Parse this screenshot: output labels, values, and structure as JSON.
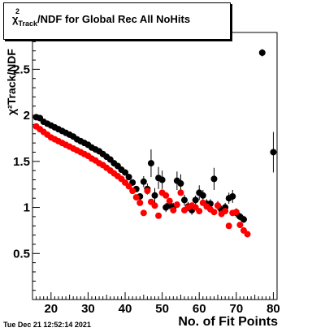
{
  "chart_data": {
    "type": "scatter",
    "title": "/NDF for Global Rec All NoHits",
    "title_symbol": "χ",
    "title_sup": "2",
    "title_sub": "Track",
    "xlabel": "No. of Fit Points",
    "ylabel": "χ²Track/NDF",
    "xlim": [
      15,
      81
    ],
    "ylim": [
      0,
      2.9
    ],
    "xticks": [
      20,
      30,
      40,
      50,
      60,
      70,
      80
    ],
    "yticks": [
      0.5,
      1,
      1.5,
      2,
      2.5
    ],
    "grid": false,
    "series": [
      {
        "color": "#000000",
        "points": [
          [
            16,
            1.98
          ],
          [
            17,
            1.97
          ],
          [
            18,
            1.93
          ],
          [
            19,
            1.91
          ],
          [
            20,
            1.89
          ],
          [
            21,
            1.87
          ],
          [
            22,
            1.85
          ],
          [
            23,
            1.83
          ],
          [
            24,
            1.81
          ],
          [
            25,
            1.79
          ],
          [
            26,
            1.77
          ],
          [
            27,
            1.74
          ],
          [
            28,
            1.72
          ],
          [
            29,
            1.7
          ],
          [
            30,
            1.68
          ],
          [
            31,
            1.65
          ],
          [
            32,
            1.63
          ],
          [
            33,
            1.61
          ],
          [
            34,
            1.58
          ],
          [
            35,
            1.55
          ],
          [
            36,
            1.52
          ],
          [
            37,
            1.48
          ],
          [
            38,
            1.45
          ],
          [
            39,
            1.41
          ],
          [
            40,
            1.38
          ],
          [
            41,
            1.33
          ],
          [
            42,
            1.27
          ],
          [
            43,
            1.2
          ],
          [
            44,
            1.12
          ],
          [
            45,
            1.28
          ],
          [
            46,
            1.2
          ],
          [
            47,
            1.48
          ],
          [
            48,
            1.13
          ],
          [
            49,
            1.32
          ],
          [
            50,
            1.3
          ],
          [
            51,
            1.0
          ],
          [
            52,
            1.03
          ],
          [
            53,
            1.0
          ],
          [
            54,
            1.29
          ],
          [
            55,
            1.26
          ],
          [
            56,
            1.08
          ],
          [
            57,
            1.01
          ],
          [
            58,
            0.97
          ],
          [
            59,
            1.08
          ],
          [
            60,
            1.16
          ],
          [
            61,
            1.13
          ],
          [
            62,
            1.04
          ],
          [
            63,
            1.04
          ],
          [
            64,
            1.31
          ],
          [
            65,
            1.02
          ],
          [
            66,
            0.97
          ],
          [
            67,
            1.0
          ],
          [
            68,
            1.1
          ],
          [
            69,
            1.12
          ],
          [
            70,
            0.94
          ],
          [
            71,
            0.9
          ],
          [
            72,
            0.87
          ],
          [
            77,
            2.68
          ],
          [
            80,
            1.6
          ]
        ],
        "errors": [
          0.01,
          0.01,
          0.01,
          0.01,
          0.01,
          0.01,
          0.01,
          0.01,
          0.01,
          0.01,
          0.01,
          0.01,
          0.01,
          0.01,
          0.01,
          0.01,
          0.01,
          0.01,
          0.01,
          0.01,
          0.01,
          0.01,
          0.01,
          0.01,
          0.02,
          0.02,
          0.02,
          0.03,
          0.03,
          0.06,
          0.06,
          0.15,
          0.08,
          0.12,
          0.1,
          0.05,
          0.05,
          0.05,
          0.1,
          0.1,
          0.06,
          0.05,
          0.05,
          0.05,
          0.08,
          0.06,
          0.05,
          0.05,
          0.12,
          0.05,
          0.05,
          0.05,
          0.06,
          0.07,
          0.05,
          0.04,
          0.04,
          0.04,
          0.22
        ]
      },
      {
        "color": "#ff0000",
        "points": [
          [
            16,
            1.88
          ],
          [
            17,
            1.85
          ],
          [
            18,
            1.82
          ],
          [
            19,
            1.79
          ],
          [
            20,
            1.76
          ],
          [
            21,
            1.74
          ],
          [
            22,
            1.72
          ],
          [
            23,
            1.7
          ],
          [
            24,
            1.68
          ],
          [
            25,
            1.66
          ],
          [
            26,
            1.64
          ],
          [
            27,
            1.62
          ],
          [
            28,
            1.6
          ],
          [
            29,
            1.58
          ],
          [
            30,
            1.56
          ],
          [
            31,
            1.53
          ],
          [
            32,
            1.51
          ],
          [
            33,
            1.48
          ],
          [
            34,
            1.46
          ],
          [
            35,
            1.43
          ],
          [
            36,
            1.4
          ],
          [
            37,
            1.37
          ],
          [
            38,
            1.34
          ],
          [
            39,
            1.31
          ],
          [
            40,
            1.27
          ],
          [
            41,
            1.23
          ],
          [
            42,
            1.18
          ],
          [
            43,
            1.11
          ],
          [
            44,
            1.05
          ],
          [
            45,
            0.94
          ],
          [
            46,
            1.18
          ],
          [
            47,
            1.06
          ],
          [
            48,
            1.02
          ],
          [
            49,
            0.91
          ],
          [
            50,
            1.16
          ],
          [
            51,
            1.13
          ],
          [
            52,
            1.07
          ],
          [
            53,
            0.97
          ],
          [
            54,
            1.03
          ],
          [
            55,
            1.16
          ],
          [
            56,
            0.97
          ],
          [
            57,
            1.0
          ],
          [
            58,
            1.02
          ],
          [
            59,
            1.0
          ],
          [
            60,
            0.96
          ],
          [
            61,
            1.05
          ],
          [
            62,
            1.01
          ],
          [
            63,
            0.98
          ],
          [
            64,
            0.95
          ],
          [
            65,
            1.02
          ],
          [
            66,
            0.93
          ],
          [
            67,
            0.96
          ],
          [
            68,
            0.8
          ],
          [
            69,
            0.94
          ],
          [
            70,
            0.95
          ],
          [
            71,
            0.81
          ],
          [
            72,
            0.75
          ],
          [
            73,
            0.71
          ]
        ]
      }
    ]
  }
}
